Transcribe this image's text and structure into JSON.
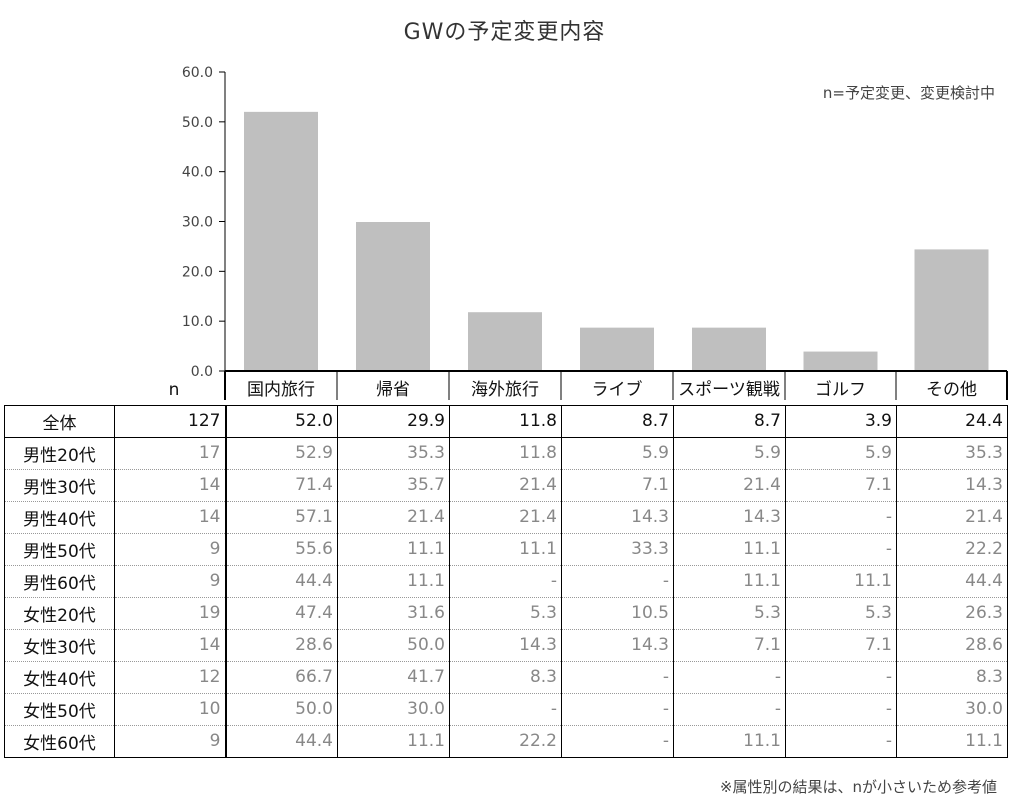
{
  "title": "GWの予定変更内容",
  "note": "n=予定変更、変更検討中",
  "footnote": "※属性別の結果は、nが小さいため参考値",
  "chart_data": {
    "type": "bar",
    "categories": [
      "国内旅行",
      "帰省",
      "海外旅行",
      "ライブ",
      "スポーツ観戦",
      "ゴルフ",
      "その他"
    ],
    "values": [
      52.0,
      29.9,
      11.8,
      8.7,
      8.7,
      3.9,
      24.4
    ],
    "ylim": [
      0,
      60
    ],
    "yticks": [
      "0.0",
      "10.0",
      "20.0",
      "30.0",
      "40.0",
      "50.0",
      "60.0"
    ],
    "bar_color": "#bfbfbf"
  },
  "table": {
    "n_header": "n",
    "total": {
      "label": "全体",
      "n": "127",
      "values": [
        "52.0",
        "29.9",
        "11.8",
        "8.7",
        "8.7",
        "3.9",
        "24.4"
      ]
    },
    "rows": [
      {
        "label": "男性20代",
        "n": "17",
        "values": [
          "52.9",
          "35.3",
          "11.8",
          "5.9",
          "5.9",
          "5.9",
          "35.3"
        ]
      },
      {
        "label": "男性30代",
        "n": "14",
        "values": [
          "71.4",
          "35.7",
          "21.4",
          "7.1",
          "21.4",
          "7.1",
          "14.3"
        ]
      },
      {
        "label": "男性40代",
        "n": "14",
        "values": [
          "57.1",
          "21.4",
          "21.4",
          "14.3",
          "14.3",
          "-",
          "21.4"
        ]
      },
      {
        "label": "男性50代",
        "n": "9",
        "values": [
          "55.6",
          "11.1",
          "11.1",
          "33.3",
          "11.1",
          "-",
          "22.2"
        ]
      },
      {
        "label": "男性60代",
        "n": "9",
        "values": [
          "44.4",
          "11.1",
          "-",
          "-",
          "11.1",
          "11.1",
          "44.4"
        ]
      },
      {
        "label": "女性20代",
        "n": "19",
        "values": [
          "47.4",
          "31.6",
          "5.3",
          "10.5",
          "5.3",
          "5.3",
          "26.3"
        ]
      },
      {
        "label": "女性30代",
        "n": "14",
        "values": [
          "28.6",
          "50.0",
          "14.3",
          "14.3",
          "7.1",
          "7.1",
          "28.6"
        ]
      },
      {
        "label": "女性40代",
        "n": "12",
        "values": [
          "66.7",
          "41.7",
          "8.3",
          "-",
          "-",
          "-",
          "8.3"
        ]
      },
      {
        "label": "女性50代",
        "n": "10",
        "values": [
          "50.0",
          "30.0",
          "-",
          "-",
          "-",
          "-",
          "30.0"
        ]
      },
      {
        "label": "女性60代",
        "n": "9",
        "values": [
          "44.4",
          "11.1",
          "22.2",
          "-",
          "11.1",
          "-",
          "11.1"
        ]
      }
    ]
  }
}
